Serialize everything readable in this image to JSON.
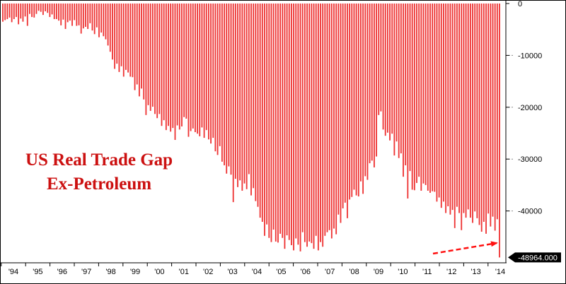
{
  "colors": {
    "bar": "#ee3333",
    "title": "#cc1111",
    "arrow": "#ff1111",
    "axis": "#000000",
    "grid": "#8a8a8a",
    "badge_bg": "#000000",
    "badge_text": "#ffffff"
  },
  "chart_data": {
    "type": "bar",
    "title_lines": [
      "US Real Trade Gap",
      "Ex-Petroleum"
    ],
    "xlabel": "",
    "ylabel": "",
    "ylim": [
      -50000,
      0
    ],
    "y_ticks": [
      0,
      -10000,
      -20000,
      -30000,
      -40000
    ],
    "y_tick_labels": [
      "0",
      "-10000",
      "-20000",
      "-30000",
      "-40000"
    ],
    "x_tick_labels": [
      "'94",
      "'95",
      "'96",
      "'97",
      "'98",
      "'99",
      "'00",
      "'01",
      "'02",
      "'03",
      "'04",
      "'05",
      "'06",
      "'07",
      "'08",
      "'09",
      "'10",
      "'11",
      "'12",
      "'13",
      "'14"
    ],
    "grid": true,
    "annotation": {
      "label": "-48964.000",
      "value": -48964
    },
    "series": [
      {
        "values": [
          -3500,
          -3200,
          -3000,
          -2700,
          -3600,
          -3000,
          -2600,
          -4000,
          -2900,
          -3500,
          -2500,
          -4300,
          -2000,
          -2600,
          -2700,
          -2000,
          -1400,
          -1600,
          -2200,
          -1500,
          -1800,
          -2600,
          -2100,
          -3000,
          -3000,
          -3300,
          -4200,
          -3100,
          -4900,
          -3600,
          -3300,
          -4300,
          -3200,
          -4300,
          -4200,
          -5800,
          -4800,
          -4500,
          -4900,
          -3800,
          -5200,
          -5900,
          -4600,
          -6500,
          -5600,
          -6300,
          -6900,
          -8100,
          -9300,
          -10800,
          -12600,
          -11600,
          -13200,
          -12100,
          -14100,
          -12800,
          -13300,
          -14100,
          -14200,
          -16700,
          -15600,
          -17900,
          -16400,
          -18500,
          -21500,
          -19600,
          -20700,
          -19900,
          -21300,
          -22100,
          -21300,
          -23600,
          -22500,
          -24400,
          -23600,
          -24700,
          -24000,
          -26300,
          -23500,
          -24300,
          -23700,
          -21900,
          -22200,
          -25700,
          -24600,
          -24100,
          -24800,
          -25100,
          -25600,
          -23900,
          -25900,
          -24400,
          -26200,
          -27000,
          -25900,
          -28500,
          -29200,
          -27500,
          -30500,
          -31200,
          -32800,
          -31400,
          -33000,
          -38300,
          -33800,
          -35400,
          -34100,
          -36100,
          -34700,
          -35800,
          -32900,
          -37000,
          -35600,
          -38100,
          -39200,
          -41300,
          -42100,
          -44800,
          -42600,
          -45200,
          -46000,
          -43600,
          -45900,
          -46100,
          -44400,
          -45200,
          -47300,
          -44700,
          -45600,
          -46600,
          -47600,
          -45300,
          -46500,
          -47800,
          -44100,
          -46000,
          -46900,
          -45900,
          -46200,
          -47300,
          -44800,
          -47600,
          -46000,
          -46900,
          -44800,
          -44100,
          -43700,
          -45300,
          -43400,
          -44500,
          -40700,
          -42300,
          -39500,
          -38400,
          -41400,
          -37800,
          -37300,
          -35900,
          -37000,
          -37200,
          -34300,
          -36700,
          -33300,
          -34000,
          -30800,
          -30300,
          -31600,
          -29500,
          -21500,
          -20800,
          -24300,
          -25500,
          -24900,
          -26400,
          -25100,
          -29300,
          -26600,
          -29800,
          -28900,
          -33400,
          -31200,
          -37600,
          -32300,
          -35900,
          -36000,
          -34600,
          -33400,
          -36100,
          -34700,
          -35000,
          -36100,
          -36500,
          -36200,
          -36300,
          -38200,
          -37400,
          -39400,
          -38200,
          -40400,
          -39100,
          -40700,
          -39800,
          -43300,
          -39200,
          -40400,
          -43700,
          -40400,
          -41300,
          -39700,
          -41300,
          -42300,
          -40100,
          -41400,
          -42700,
          -44000,
          -42100,
          -44400,
          -40500,
          -43000,
          -41100,
          -43800,
          -41600,
          -48964
        ]
      }
    ]
  }
}
